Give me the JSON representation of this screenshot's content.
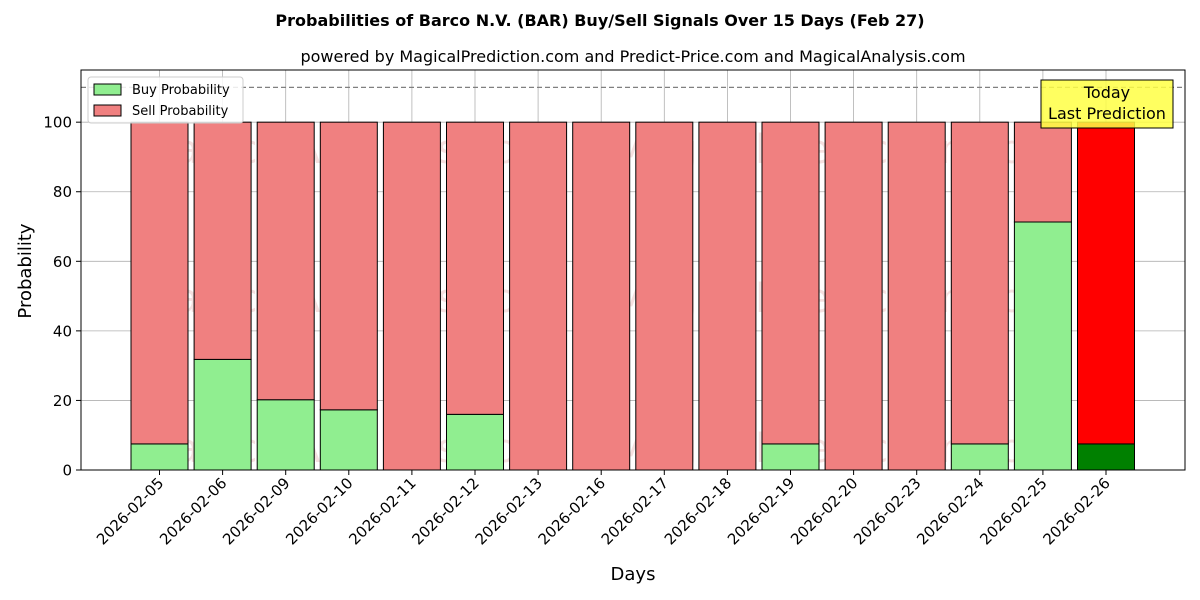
{
  "chart_data": {
    "type": "bar",
    "stacked": true,
    "title": "Probabilities of Barco N.V. (BAR) Buy/Sell Signals Over 15 Days (Feb 27)",
    "subtitle": "powered by MagicalPrediction.com and Predict-Price.com and MagicalAnalysis.com",
    "xlabel": "Days",
    "ylabel": "Probability",
    "ylim": [
      0,
      115
    ],
    "yticks": [
      0,
      20,
      40,
      60,
      80,
      100
    ],
    "grid": true,
    "legend_position": "top-left",
    "reference_line": 110,
    "categories": [
      "2026-02-05",
      "2026-02-06",
      "2026-02-09",
      "2026-02-10",
      "2026-02-11",
      "2026-02-12",
      "2026-02-13",
      "2026-02-16",
      "2026-02-17",
      "2026-02-18",
      "2026-02-19",
      "2026-02-20",
      "2026-02-23",
      "2026-02-24",
      "2026-02-25",
      "2026-02-26"
    ],
    "series": [
      {
        "name": "Buy Probability",
        "color": "#90ee90",
        "values": [
          7.5,
          31.8,
          20.2,
          17.3,
          0,
          16.0,
          0,
          0,
          0,
          0,
          7.5,
          0,
          0,
          7.5,
          71.3,
          7.5
        ]
      },
      {
        "name": "Sell Probability",
        "color": "#f08080",
        "values": [
          92.5,
          68.2,
          79.8,
          82.7,
          100,
          84.0,
          100,
          100,
          100,
          100,
          92.5,
          100,
          100,
          92.5,
          28.7,
          92.5
        ]
      }
    ],
    "highlight": {
      "index": 15,
      "buy_color": "#008000",
      "sell_color": "#ff0000",
      "annotation": [
        "Today",
        "Last Prediction"
      ],
      "annotation_color": "#ffff44"
    },
    "watermarks": [
      "MagicalAnalysis.com",
      "MagicalPrediction.com"
    ]
  }
}
